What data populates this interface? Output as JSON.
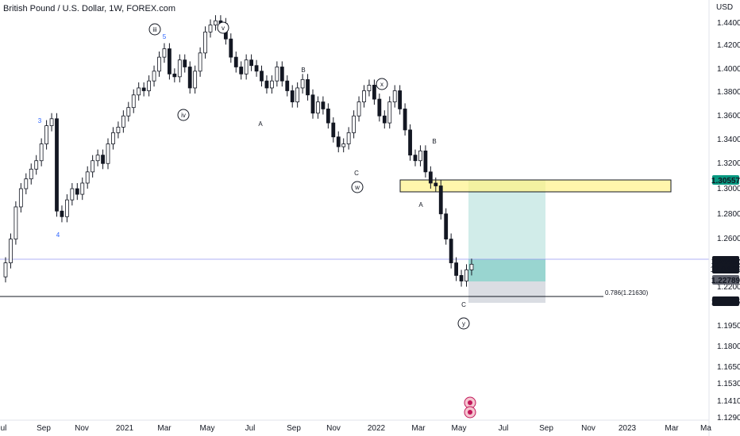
{
  "header": {
    "title": "British Pound / U.S. Dollar, 1W, FOREX.com"
  },
  "chart_data": {
    "type": "candlestick",
    "title": "British Pound / U.S. Dollar, 1W, FOREX.com",
    "currency": "USD",
    "ylim": [
      1.12,
      1.45
    ],
    "y_ticks": [
      "1.44000",
      "1.42000",
      "1.40000",
      "1.38000",
      "1.36000",
      "1.34000",
      "1.32000",
      "1.30000",
      "1.28000",
      "1.26000",
      "1.24000",
      "1.22000",
      "1.19500",
      "1.18000",
      "1.16500",
      "1.15300",
      "1.14100",
      "1.12900"
    ],
    "x_ticks": [
      "Jul",
      "Sep",
      "Nov",
      "2021",
      "Mar",
      "May",
      "Jul",
      "Sep",
      "Nov",
      "2022",
      "Mar",
      "May",
      "Jul",
      "Sep",
      "Nov",
      "2023",
      "Mar",
      "Ma"
    ],
    "price_labels": [
      {
        "value": 1.30557,
        "text": "1.30557",
        "color": "#089981"
      },
      {
        "value": 1.24462,
        "text": "1.24462",
        "sub": "17:04:39",
        "color": "#131722"
      },
      {
        "value": 1.22789,
        "text": "1.22789",
        "color": "#5d606b"
      },
      {
        "value": 1.21205,
        "text": "1.21205",
        "color": "#131722"
      }
    ],
    "fib_label": "0.786(1.21630)",
    "wave_labels": [
      {
        "text": "3",
        "color": "blue"
      },
      {
        "text": "4",
        "color": "blue"
      },
      {
        "text": "5",
        "color": "blue"
      },
      {
        "text": "iii",
        "circled": true
      },
      {
        "text": "iv",
        "circled": true
      },
      {
        "text": "v",
        "circled": true
      },
      {
        "text": "A"
      },
      {
        "text": "B"
      },
      {
        "text": "C"
      },
      {
        "text": "w",
        "circled": true
      },
      {
        "text": "x",
        "circled": true
      },
      {
        "text": "A"
      },
      {
        "text": "B"
      },
      {
        "text": "C"
      },
      {
        "text": "y",
        "circled": true
      }
    ],
    "grid": false,
    "zones": [
      "supply-demand box 1.296–1.306",
      "long position target",
      "long position stop"
    ]
  }
}
